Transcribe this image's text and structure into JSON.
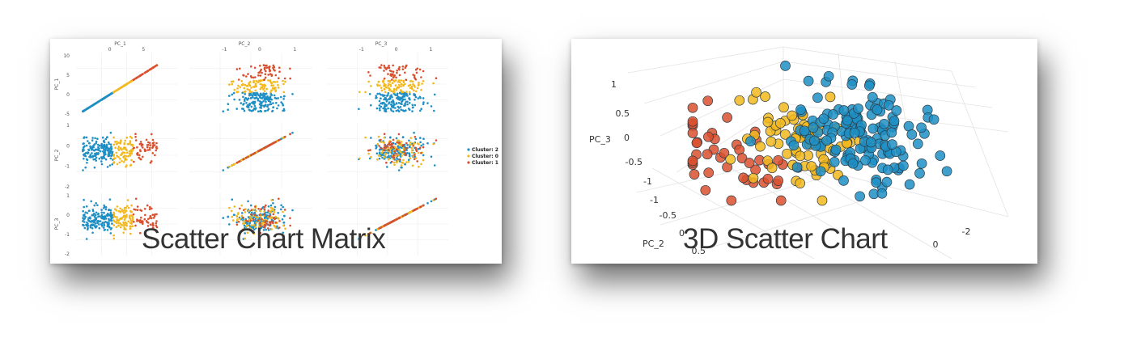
{
  "colors": {
    "cluster_2": "#1f8fc4",
    "cluster_0": "#f2b81e",
    "cluster_1": "#d9502f"
  },
  "captions": {
    "left": "Scatter Chart Matrix",
    "right": "3D Scatter Chart"
  },
  "chart_data": [
    {
      "type": "scatter",
      "subtype": "scatter-matrix",
      "title": "Scatter Chart Matrix",
      "variables": [
        "PC_1",
        "PC_2",
        "PC_3"
      ],
      "column_ticks": [
        [
          "0",
          "5"
        ],
        [
          "-1",
          "0",
          "1"
        ],
        [
          "-1",
          "0",
          "1"
        ]
      ],
      "row_ticks": [
        [
          "10",
          "5",
          "0",
          "-5"
        ],
        [
          "1",
          "0",
          "-1",
          "-2"
        ],
        [
          "1",
          "0",
          "-1",
          "-2"
        ]
      ],
      "ranges": {
        "PC_1": [
          -5,
          10
        ],
        "PC_2": [
          -2,
          1.5
        ],
        "PC_3": [
          -2,
          1.5
        ]
      },
      "legend": {
        "position": "right",
        "entries": [
          "Cluster: 2",
          "Cluster: 0",
          "Cluster: 1"
        ]
      },
      "series": [
        {
          "name": "Cluster: 2",
          "pc1_range": [
            -4,
            0.5
          ],
          "pc2_center": 0,
          "pc3_center": 0,
          "n": 170
        },
        {
          "name": "Cluster: 0",
          "pc1_range": [
            0.5,
            3.5
          ],
          "pc2_center": 0,
          "pc3_center": 0,
          "n": 90
        },
        {
          "name": "Cluster: 1",
          "pc1_range": [
            3.5,
            7
          ],
          "pc2_center": 0.1,
          "pc3_center": 0,
          "n": 55
        }
      ],
      "grid": true
    },
    {
      "type": "scatter",
      "subtype": "3d-scatter",
      "title": "3D Scatter Chart",
      "axes": {
        "z": "PC_3",
        "x": "PC_2"
      },
      "z_ticks": [
        "1",
        "0.5",
        "0",
        "-0.5",
        "-1"
      ],
      "x_ticks": [
        "-1",
        "-0.5",
        "0",
        "0.5"
      ],
      "y_ticks": [
        "0",
        "-2"
      ],
      "series": [
        {
          "name": "Cluster: 2",
          "n": 150
        },
        {
          "name": "Cluster: 0",
          "n": 75
        },
        {
          "name": "Cluster: 1",
          "n": 45
        }
      ],
      "grid": true
    }
  ]
}
